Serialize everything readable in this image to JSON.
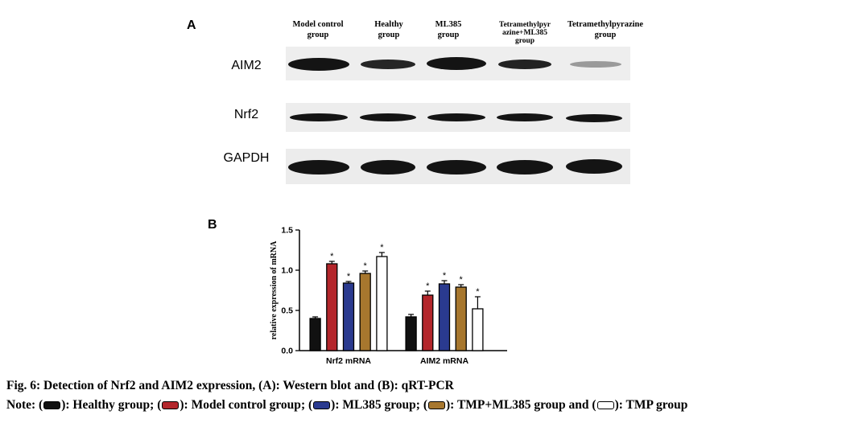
{
  "panel_a": {
    "label": "A",
    "columns": [
      [
        "Model control",
        "group"
      ],
      [
        "Healthy",
        "group"
      ],
      [
        "ML385",
        "group"
      ],
      [
        "Tetramethylpyr",
        "azine+ML385",
        "group"
      ],
      [
        "Tetramethylpyrazine",
        "group"
      ]
    ],
    "rows": [
      "AIM2",
      "Nrf2",
      "GAPDH"
    ]
  },
  "chart_data": {
    "type": "bar",
    "panel_label": "B",
    "ylabel": "relative expression of mRNA",
    "categories": [
      "Nrf2 mRNA",
      "AIM2 mRNA"
    ],
    "ylim": [
      0,
      1.5
    ],
    "yticks": [
      {
        "value": 0,
        "label": "0.0"
      },
      0.5,
      {
        "value": 1,
        "label": "1.0"
      },
      1.5
    ],
    "series": [
      {
        "name": "Healthy group",
        "color": "#111111",
        "values": [
          0.4,
          0.42
        ],
        "errors": [
          0.02,
          0.03
        ]
      },
      {
        "name": "Model control group",
        "color": "#b3262b",
        "values": [
          1.08,
          0.69
        ],
        "errors": [
          0.03,
          0.05
        ],
        "annotations": [
          "*",
          "*"
        ]
      },
      {
        "name": "ML385 group",
        "color": "#2a3a8f",
        "values": [
          0.84,
          0.83
        ],
        "errors": [
          0.02,
          0.04
        ],
        "annotations": [
          "*",
          "*"
        ]
      },
      {
        "name": "TMP+ML385 group",
        "color": "#a7772e",
        "values": [
          0.96,
          0.79
        ],
        "errors": [
          0.03,
          0.03
        ],
        "annotations": [
          "*",
          "*"
        ]
      },
      {
        "name": "TMP group",
        "color": "#ffffff",
        "values": [
          1.17,
          0.52
        ],
        "errors": [
          0.05,
          0.15
        ],
        "annotations": [
          "*",
          "*"
        ]
      }
    ]
  },
  "caption": {
    "title": "Fig. 6: Detection of Nrf2 and AIM2 expression, (A): Western blot and (B): qRT-PCR",
    "note": {
      "lead": "Note:",
      "open": "(",
      "close": "):",
      "joins": [
        "; ",
        "; ",
        "; ",
        " and "
      ]
    }
  }
}
